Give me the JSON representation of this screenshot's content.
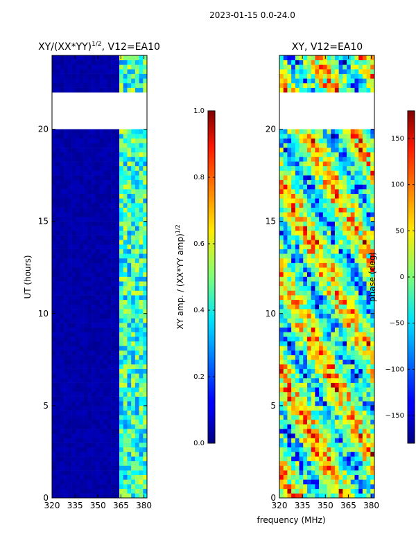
{
  "figure": {
    "suptitle": "2023-01-15 0.0-24.0",
    "xlabel": "frequency (MHz)"
  },
  "chart_data": [
    {
      "type": "heatmap",
      "title_main": "XY/(XX*YY)",
      "title_sup": "1/2",
      "title_tail": ", V12=EA10",
      "xlabel": "",
      "ylabel": "UT (hours)",
      "xlim": [
        320,
        382
      ],
      "ylim": [
        0,
        24
      ],
      "xticks": [
        320,
        335,
        350,
        365,
        380
      ],
      "yticks": [
        0,
        5,
        10,
        15,
        20
      ],
      "colorbar": {
        "label_main": "XY amp. / (XX*YY amp)",
        "label_sup": "1/2",
        "range": [
          0.0,
          1.0
        ],
        "ticks": [
          "0.0",
          "0.2",
          "0.4",
          "0.6",
          "0.8",
          "1.0"
        ],
        "colormap": "jet"
      },
      "data_gaps_hours": [
        [
          19.9,
          22.1
        ],
        [
          22.45,
          22.55
        ],
        [
          22.9,
          23.05
        ]
      ],
      "description_values": {
        "low_freq_band_amp": 0.02,
        "high_freq_band_amp": [
          0.3,
          0.6
        ]
      }
    },
    {
      "type": "heatmap",
      "title_main": "XY, V12=EA10",
      "xlabel": "",
      "ylabel": "",
      "xlim": [
        320,
        382
      ],
      "ylim": [
        0,
        24
      ],
      "xticks": [
        320,
        335,
        350,
        365,
        380
      ],
      "yticks": [
        0,
        5,
        10,
        15,
        20
      ],
      "colorbar": {
        "label_main": "phase (deg)",
        "range": [
          -180,
          180
        ],
        "ticks": [
          "−150",
          "−100",
          "−50",
          "0",
          "50",
          "100",
          "150"
        ],
        "tick_values": [
          -150,
          -100,
          -50,
          0,
          50,
          100,
          150
        ],
        "colormap": "jet"
      },
      "data_gaps_hours": [
        [
          19.9,
          22.1
        ],
        [
          22.45,
          22.55
        ],
        [
          22.9,
          23.05
        ]
      ]
    }
  ]
}
